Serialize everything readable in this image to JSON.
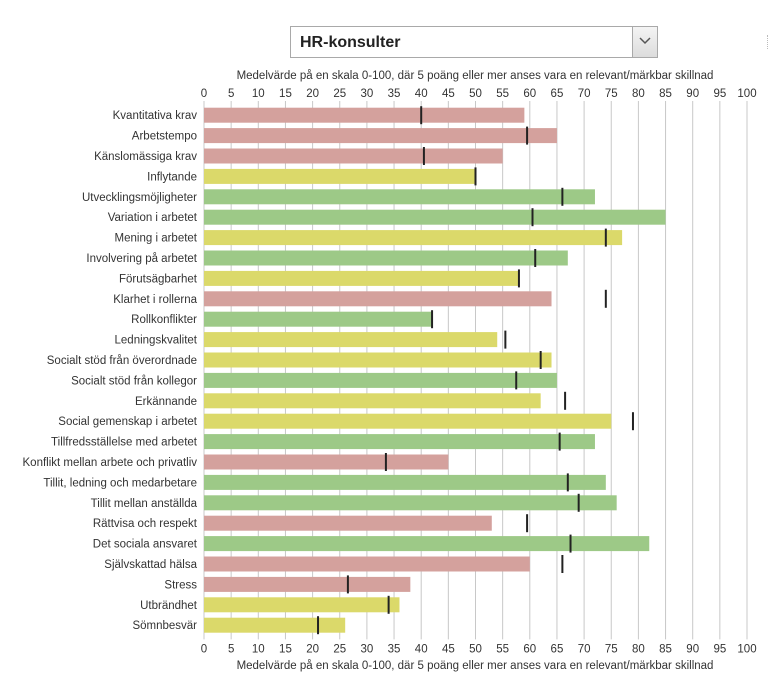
{
  "selector": {
    "value": "HR-konsulter",
    "icon": "chevron-down-icon"
  },
  "colors": {
    "red": "#d4a19d",
    "yellow": "#dbd96a",
    "green": "#9dc987",
    "marker": "#222222",
    "grid": "#c8c8c8"
  },
  "chart_data": {
    "type": "bar",
    "orientation": "horizontal",
    "title": "",
    "xlabel": "Medelvärde på en skala 0-100, där 5 poäng eller mer anses vara en relevant/märkbar skillnad",
    "xlabel_bottom": "Medelvärde på en skala 0-100, där 5 poäng eller mer anses vara en relevant/märkbar skillnad",
    "xlim": [
      0,
      100
    ],
    "xticks": [
      "0",
      "5",
      "10",
      "15",
      "20",
      "25",
      "30",
      "35",
      "40",
      "45",
      "50",
      "55",
      "60",
      "65",
      "70",
      "75",
      "80",
      "85",
      "90",
      "95",
      "100"
    ],
    "grid": "vertical",
    "categories": [
      "Kvantitativa krav",
      "Arbetstempo",
      "Känslomässiga krav",
      "Inflytande",
      "Utvecklingsmöjligheter",
      "Variation i arbetet",
      "Mening i arbetet",
      "Involvering på arbetet",
      "Förutsägbarhet",
      "Klarhet i rollerna",
      "Rollkonflikter",
      "Ledningskvalitet",
      "Socialt stöd från överordnade",
      "Socialt stöd från kollegor",
      "Erkännande",
      "Social gemenskap i arbetet",
      "Tillfredsställelse med arbetet",
      "Konflikt mellan arbete och privatliv",
      "Tillit, ledning och medarbetare",
      "Tillit mellan anställda",
      "Rättvisa och respekt",
      "Det sociala ansvaret",
      "Självskattad hälsa",
      "Stress",
      "Utbrändhet",
      "Sömnbesvär"
    ],
    "series": [
      {
        "values": [
          59,
          65,
          55,
          50,
          72,
          85,
          77,
          67,
          58,
          64,
          42,
          54,
          64,
          65,
          62,
          75,
          72,
          45,
          74,
          76,
          53,
          82,
          60,
          38,
          36,
          26
        ],
        "colors": [
          "red",
          "red",
          "red",
          "yellow",
          "green",
          "green",
          "yellow",
          "green",
          "yellow",
          "red",
          "green",
          "yellow",
          "yellow",
          "green",
          "yellow",
          "yellow",
          "green",
          "red",
          "green",
          "green",
          "red",
          "green",
          "red",
          "red",
          "yellow",
          "yellow"
        ]
      },
      {
        "type": "marker",
        "values": [
          40,
          59.5,
          40.5,
          50,
          66,
          60.5,
          74,
          61,
          58,
          74,
          42,
          55.5,
          62,
          57.5,
          66.5,
          79,
          65.5,
          33.5,
          67,
          69,
          59.5,
          67.5,
          66,
          26.5,
          34,
          21
        ]
      }
    ]
  }
}
